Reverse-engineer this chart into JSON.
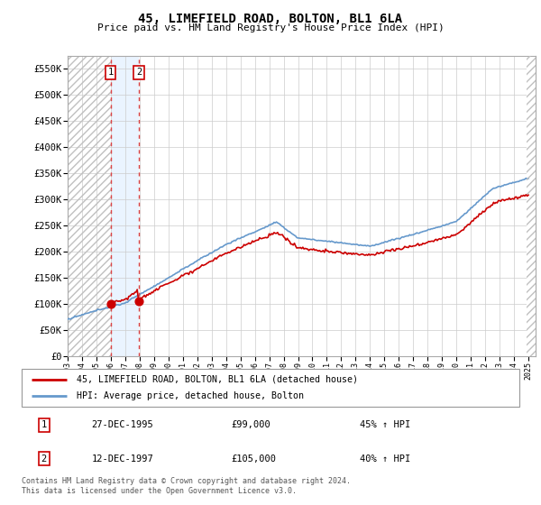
{
  "title": "45, LIMEFIELD ROAD, BOLTON, BL1 6LA",
  "subtitle": "Price paid vs. HM Land Registry's House Price Index (HPI)",
  "ylim": [
    0,
    575000
  ],
  "yticks": [
    0,
    50000,
    100000,
    150000,
    200000,
    250000,
    300000,
    350000,
    400000,
    450000,
    500000,
    550000
  ],
  "ytick_labels": [
    "£0",
    "£50K",
    "£100K",
    "£150K",
    "£200K",
    "£250K",
    "£300K",
    "£350K",
    "£400K",
    "£450K",
    "£500K",
    "£550K"
  ],
  "grid_color": "#cccccc",
  "sale1_date": 1995.98,
  "sale1_price": 99000,
  "sale2_date": 1997.95,
  "sale2_price": 105000,
  "sale_color": "#cc0000",
  "hpi_color": "#6699cc",
  "legend_entries": [
    "45, LIMEFIELD ROAD, BOLTON, BL1 6LA (detached house)",
    "HPI: Average price, detached house, Bolton"
  ],
  "table_rows": [
    [
      "1",
      "27-DEC-1995",
      "£99,000",
      "45% ↑ HPI"
    ],
    [
      "2",
      "12-DEC-1997",
      "£105,000",
      "40% ↑ HPI"
    ]
  ],
  "footer": "Contains HM Land Registry data © Crown copyright and database right 2024.\nThis data is licensed under the Open Government Licence v3.0."
}
